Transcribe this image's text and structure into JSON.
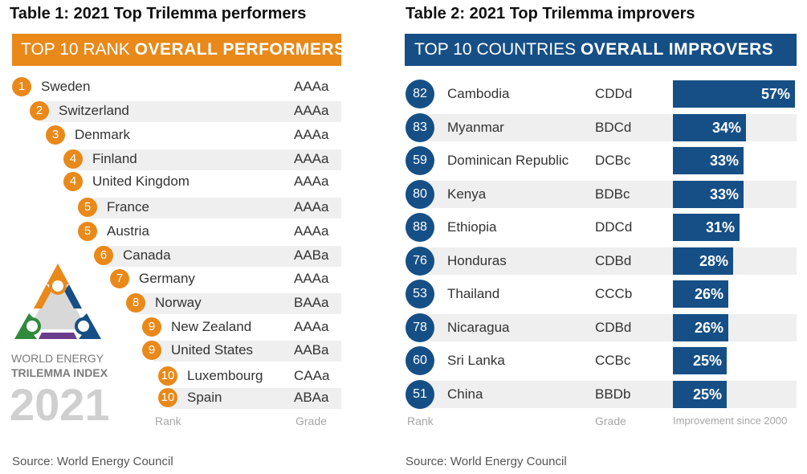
{
  "table1": {
    "title": "Table 1:  2021 Top Trilemma performers",
    "banner_light": "TOP 10 RANK ",
    "banner_bold": "OVERALL PERFORMERS",
    "banner_color": "#e8891a",
    "rows": [
      {
        "rank": "1",
        "country": "Sweden",
        "grade": "AAAa"
      },
      {
        "rank": "2",
        "country": "Switzerland",
        "grade": "AAAa"
      },
      {
        "rank": "3",
        "country": "Denmark",
        "grade": "AAAa"
      },
      {
        "rank": "4",
        "country": "Finland",
        "grade": "AAAa"
      },
      {
        "rank": "4",
        "country": "United Kingdom",
        "grade": "AAAa"
      },
      {
        "rank": "5",
        "country": "France",
        "grade": "AAAa"
      },
      {
        "rank": "5",
        "country": "Austria",
        "grade": "AAAa"
      },
      {
        "rank": "6",
        "country": "Canada",
        "grade": "AABa"
      },
      {
        "rank": "7",
        "country": "Germany",
        "grade": "AAAa"
      },
      {
        "rank": "8",
        "country": "Norway",
        "grade": "BAAa"
      },
      {
        "rank": "9",
        "country": "New Zealand",
        "grade": "AAAa"
      },
      {
        "rank": "9",
        "country": "United States",
        "grade": "AABa"
      },
      {
        "rank": "10",
        "country": "Luxembourg",
        "grade": "CAAa"
      },
      {
        "rank": "10",
        "country": "Spain",
        "grade": "ABAa"
      }
    ],
    "rank_label": "Rank",
    "grade_label": "Grade",
    "source": "Source: World Energy Council"
  },
  "logo": {
    "line1": "WORLD ENERGY",
    "line2": "TRILEMMA INDEX",
    "year": "2021"
  },
  "table2": {
    "title": "Table 2:   2021 Top Trilemma improvers",
    "banner_light": "TOP 10 COUNTRIES ",
    "banner_bold": "OVERALL IMPROVERS",
    "banner_color": "#154f86",
    "rows": [
      {
        "rank": "82",
        "country": "Cambodia",
        "grade": "CDDd",
        "improvement": "57%",
        "value": 57
      },
      {
        "rank": "83",
        "country": "Myanmar",
        "grade": "BDCd",
        "improvement": "34%",
        "value": 34
      },
      {
        "rank": "59",
        "country": "Dominican Republic",
        "grade": "DCBc",
        "improvement": "33%",
        "value": 33
      },
      {
        "rank": "80",
        "country": "Kenya",
        "grade": "BDBc",
        "improvement": "33%",
        "value": 33
      },
      {
        "rank": "88",
        "country": "Ethiopia",
        "grade": "DDCd",
        "improvement": "31%",
        "value": 31
      },
      {
        "rank": "76",
        "country": "Honduras",
        "grade": "CDBd",
        "improvement": "28%",
        "value": 28
      },
      {
        "rank": "53",
        "country": "Thailand",
        "grade": "CCCb",
        "improvement": "26%",
        "value": 26
      },
      {
        "rank": "78",
        "country": "Nicaragua",
        "grade": "CDBd",
        "improvement": "26%",
        "value": 26
      },
      {
        "rank": "60",
        "country": "Sri Lanka",
        "grade": "CCBc",
        "improvement": "25%",
        "value": 25
      },
      {
        "rank": "51",
        "country": "China",
        "grade": "BBDb",
        "improvement": "25%",
        "value": 25
      }
    ],
    "rank_label": "Rank",
    "grade_label": "Grade",
    "improvement_label": "Improvement since 2000",
    "source": "Source: World Energy Council"
  }
}
